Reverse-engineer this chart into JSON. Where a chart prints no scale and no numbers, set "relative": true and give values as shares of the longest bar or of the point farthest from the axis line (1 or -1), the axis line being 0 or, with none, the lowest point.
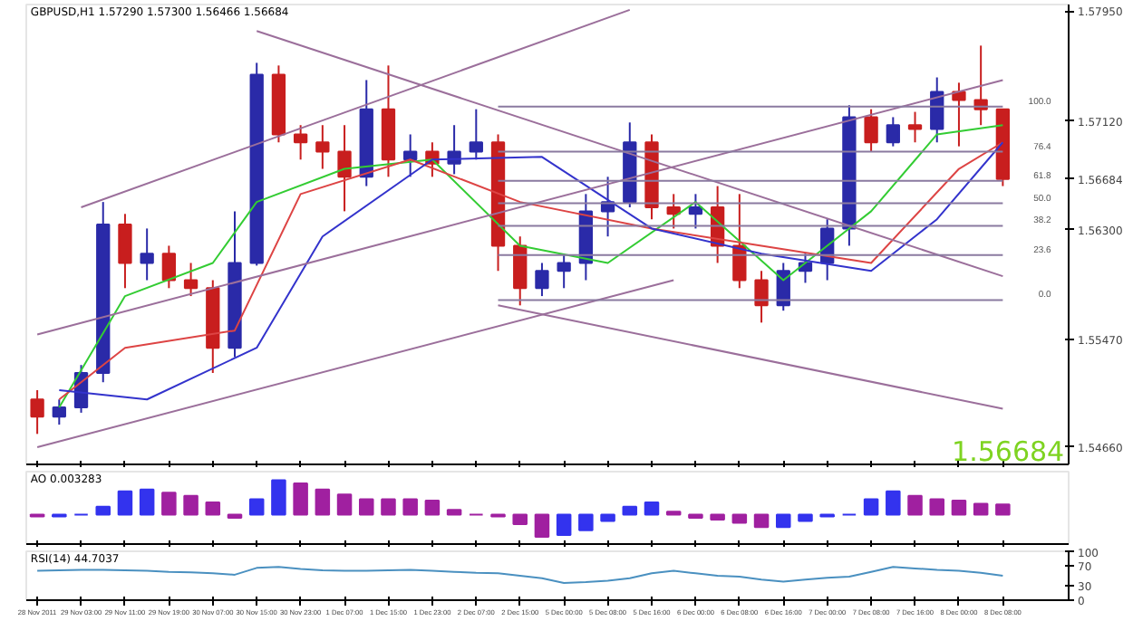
{
  "chart_data": [
    {
      "type": "candlestick",
      "title": "GBPUSD,H1 1.57290 1.57300 1.56466 1.56684",
      "categories": [
        "28 Nov 2011",
        null,
        "29 Nov 03:00",
        null,
        "29 Nov 11:00",
        null,
        "29 Nov 19:00",
        null,
        "30 Nov 07:00",
        null,
        "30 Nov 15:00",
        null,
        "30 Nov 23:00",
        null,
        "1 Dec 07:00",
        null,
        "1 Dec 15:00",
        null,
        "1 Dec 23:00",
        null,
        "2 Dec 07:00",
        null,
        "2 Dec 15:00",
        null,
        "5 Dec 00:00",
        null,
        "5 Dec 08:00",
        null,
        "5 Dec 16:00",
        null,
        "6 Dec 00:00",
        null,
        "6 Dec 08:00",
        null,
        "6 Dec 16:00",
        null,
        "7 Dec 00:00",
        null,
        "7 Dec 08:00",
        null,
        "7 Dec 16:00",
        null,
        "8 Dec 00:00",
        null,
        "8 Dec 08:00"
      ],
      "ohlc": [
        [
          1.5502,
          1.5509,
          1.5476,
          1.5489
        ],
        [
          1.5489,
          1.5502,
          1.5483,
          1.5496
        ],
        [
          1.5496,
          1.5528,
          1.5492,
          1.5522
        ],
        [
          1.5522,
          1.5651,
          1.5515,
          1.5634
        ],
        [
          1.5634,
          1.5642,
          1.5586,
          1.5605
        ],
        [
          1.5605,
          1.5631,
          1.5592,
          1.5612
        ],
        [
          1.5612,
          1.5618,
          1.5586,
          1.5592
        ],
        [
          1.5592,
          1.5605,
          1.558,
          1.5586
        ],
        [
          1.5586,
          1.5592,
          1.5522,
          1.5541
        ],
        [
          1.5541,
          1.5644,
          1.5534,
          1.5605
        ],
        [
          1.5605,
          1.5756,
          1.5603,
          1.5747
        ],
        [
          1.5747,
          1.5754,
          1.5696,
          1.5702
        ],
        [
          1.5702,
          1.5709,
          1.5683,
          1.5696
        ],
        [
          1.5696,
          1.5709,
          1.5676,
          1.5689
        ],
        [
          1.5689,
          1.5709,
          1.5644,
          1.567
        ],
        [
          1.567,
          1.5743,
          1.5663,
          1.5721
        ],
        [
          1.5721,
          1.5754,
          1.567,
          1.5683
        ],
        [
          1.5683,
          1.5702,
          1.567,
          1.5689
        ],
        [
          1.5689,
          1.5696,
          1.567,
          1.568
        ],
        [
          1.568,
          1.5709,
          1.5672,
          1.5689
        ],
        [
          1.5689,
          1.5721,
          1.5683,
          1.5696
        ],
        [
          1.5696,
          1.5702,
          1.5599,
          1.5618
        ],
        [
          1.5618,
          1.5625,
          1.5573,
          1.5586
        ],
        [
          1.5586,
          1.5605,
          1.558,
          1.5599
        ],
        [
          1.5599,
          1.5612,
          1.5586,
          1.5605
        ],
        [
          1.5605,
          1.5657,
          1.5592,
          1.5644
        ],
        [
          1.5644,
          1.567,
          1.5625,
          1.5651
        ],
        [
          1.5651,
          1.5711,
          1.5647,
          1.5696
        ],
        [
          1.5696,
          1.5702,
          1.5638,
          1.5647
        ],
        [
          1.5647,
          1.5657,
          1.5631,
          1.5642
        ],
        [
          1.5642,
          1.5657,
          1.5631,
          1.5647
        ],
        [
          1.5647,
          1.5663,
          1.5605,
          1.5618
        ],
        [
          1.5618,
          1.5657,
          1.5586,
          1.5592
        ],
        [
          1.5592,
          1.5599,
          1.556,
          1.5573
        ],
        [
          1.5573,
          1.5605,
          1.5569,
          1.5599
        ],
        [
          1.5599,
          1.5612,
          1.559,
          1.5605
        ],
        [
          1.5605,
          1.5638,
          1.5592,
          1.5631
        ],
        [
          1.5631,
          1.5724,
          1.5618,
          1.5715
        ],
        [
          1.5715,
          1.5721,
          1.5689,
          1.5696
        ],
        [
          1.5696,
          1.5715,
          1.5693,
          1.5709
        ],
        [
          1.5709,
          1.5719,
          1.5696,
          1.5706
        ],
        [
          1.5706,
          1.5745,
          1.5696,
          1.5734
        ],
        [
          1.5734,
          1.5741,
          1.5693,
          1.5728
        ],
        [
          1.5728,
          1.5769,
          1.5709,
          1.5721
        ],
        [
          1.5721,
          1.5721,
          1.5663,
          1.56684
        ]
      ],
      "series": [
        {
          "type": "line",
          "color": "#33cc33",
          "values": [
            null,
            1.5496,
            null,
            null,
            1.558,
            null,
            null,
            null,
            1.5605,
            null,
            1.5651,
            null,
            null,
            null,
            1.5676,
            null,
            null,
            null,
            1.5683,
            null,
            null,
            null,
            1.5618,
            null,
            null,
            null,
            1.5605,
            null,
            null,
            null,
            1.5651,
            null,
            null,
            null,
            1.5592,
            null,
            null,
            null,
            1.5644,
            null,
            null,
            1.5702,
            null,
            null,
            1.5709
          ]
        },
        {
          "type": "line",
          "color": "#dd4444",
          "values": [
            null,
            1.5502,
            null,
            null,
            1.5541,
            null,
            null,
            null,
            null,
            1.5554,
            null,
            null,
            1.5657,
            null,
            null,
            null,
            null,
            1.5683,
            null,
            null,
            null,
            null,
            1.5651,
            null,
            null,
            null,
            null,
            null,
            1.5631,
            null,
            null,
            null,
            null,
            1.5618,
            null,
            null,
            null,
            null,
            1.5605,
            null,
            null,
            null,
            1.5676,
            null,
            1.5696
          ]
        },
        {
          "type": "line",
          "color": "#3333cc",
          "values": [
            null,
            1.5509,
            null,
            null,
            null,
            1.5502,
            null,
            null,
            null,
            null,
            1.5541,
            null,
            null,
            1.5625,
            null,
            null,
            null,
            null,
            1.5683,
            null,
            null,
            null,
            null,
            1.5685,
            null,
            null,
            null,
            null,
            1.5631,
            null,
            null,
            null,
            null,
            1.5612,
            null,
            null,
            null,
            null,
            1.5599,
            null,
            null,
            1.5638,
            null,
            null,
            1.5696
          ]
        },
        {
          "type": "line",
          "color": "#9b6f9b",
          "values": [
            null,
            null,
            1.5647,
            null,
            null,
            null,
            null,
            null,
            null,
            null,
            null,
            null,
            null,
            null,
            null,
            null,
            null,
            null,
            null,
            null,
            null,
            null,
            null,
            null,
            null,
            null,
            null,
            1.5796,
            null,
            null,
            null,
            null,
            null,
            null,
            null,
            null,
            null,
            null,
            null,
            null,
            null,
            null,
            null,
            null,
            null
          ]
        },
        {
          "type": "line",
          "color": "#9b6f9b",
          "values": [
            1.5551,
            null,
            null,
            null,
            null,
            null,
            null,
            null,
            null,
            null,
            null,
            null,
            null,
            null,
            null,
            null,
            null,
            null,
            null,
            null,
            null,
            null,
            null,
            null,
            null,
            null,
            null,
            null,
            null,
            null,
            null,
            null,
            null,
            null,
            null,
            null,
            null,
            null,
            null,
            null,
            null,
            null,
            null,
            null,
            1.5743
          ]
        },
        {
          "type": "line",
          "color": "#9b6f9b",
          "values": [
            1.5466,
            null,
            null,
            null,
            null,
            null,
            null,
            null,
            null,
            null,
            null,
            null,
            null,
            null,
            null,
            null,
            null,
            null,
            null,
            null,
            null,
            null,
            null,
            null,
            null,
            null,
            null,
            null,
            null,
            1.5592,
            null,
            null,
            null,
            null,
            null,
            null,
            null,
            null,
            null,
            null,
            null,
            null,
            null,
            null,
            null
          ]
        },
        {
          "type": "line",
          "color": "#9b6f9b",
          "values": [
            null,
            null,
            null,
            null,
            null,
            null,
            null,
            null,
            null,
            null,
            1.578,
            null,
            null,
            null,
            null,
            null,
            null,
            null,
            null,
            null,
            null,
            null,
            null,
            null,
            null,
            null,
            null,
            null,
            null,
            null,
            null,
            null,
            null,
            null,
            null,
            null,
            null,
            null,
            null,
            null,
            null,
            null,
            null,
            null,
            1.5595
          ]
        },
        {
          "type": "line",
          "color": "#9b6f9b",
          "values": [
            null,
            null,
            null,
            null,
            null,
            null,
            null,
            null,
            null,
            null,
            null,
            null,
            null,
            null,
            null,
            null,
            null,
            null,
            null,
            null,
            null,
            1.5573,
            null,
            null,
            null,
            null,
            null,
            null,
            null,
            null,
            null,
            null,
            null,
            null,
            null,
            null,
            null,
            null,
            null,
            null,
            null,
            null,
            null,
            null,
            1.5495
          ]
        },
        {
          "type": "line",
          "name": "100.0",
          "color": "#8a7aa0",
          "values": [
            null,
            null,
            null,
            null,
            null,
            null,
            null,
            null,
            null,
            null,
            null,
            null,
            null,
            null,
            null,
            null,
            null,
            null,
            null,
            null,
            null,
            1.5723,
            null,
            null,
            null,
            null,
            null,
            null,
            null,
            null,
            null,
            null,
            null,
            null,
            null,
            null,
            null,
            null,
            null,
            null,
            null,
            null,
            null,
            null,
            1.5723
          ]
        },
        {
          "type": "line",
          "name": "76.4",
          "color": "#8a7aa0",
          "values": [
            null,
            null,
            null,
            null,
            null,
            null,
            null,
            null,
            null,
            null,
            null,
            null,
            null,
            null,
            null,
            null,
            null,
            null,
            null,
            null,
            null,
            1.5689,
            null,
            null,
            null,
            null,
            null,
            null,
            null,
            null,
            null,
            null,
            null,
            null,
            null,
            null,
            null,
            null,
            null,
            null,
            null,
            null,
            null,
            null,
            1.5689
          ]
        },
        {
          "type": "line",
          "name": "61.8",
          "color": "#8a7aa0",
          "values": [
            null,
            null,
            null,
            null,
            null,
            null,
            null,
            null,
            null,
            null,
            null,
            null,
            null,
            null,
            null,
            null,
            null,
            null,
            null,
            null,
            null,
            1.5667,
            null,
            null,
            null,
            null,
            null,
            null,
            null,
            null,
            null,
            null,
            null,
            null,
            null,
            null,
            null,
            null,
            null,
            null,
            null,
            null,
            null,
            null,
            1.5667
          ]
        },
        {
          "type": "line",
          "name": "50.0",
          "color": "#8a7aa0",
          "values": [
            null,
            null,
            null,
            null,
            null,
            null,
            null,
            null,
            null,
            null,
            null,
            null,
            null,
            null,
            null,
            null,
            null,
            null,
            null,
            null,
            null,
            1.565,
            null,
            null,
            null,
            null,
            null,
            null,
            null,
            null,
            null,
            null,
            null,
            null,
            null,
            null,
            null,
            null,
            null,
            null,
            null,
            null,
            null,
            null,
            1.565
          ]
        },
        {
          "type": "line",
          "name": "38.2",
          "color": "#8a7aa0",
          "values": [
            null,
            null,
            null,
            null,
            null,
            null,
            null,
            null,
            null,
            null,
            null,
            null,
            null,
            null,
            null,
            null,
            null,
            null,
            null,
            null,
            null,
            1.5633,
            null,
            null,
            null,
            null,
            null,
            null,
            null,
            null,
            null,
            null,
            null,
            null,
            null,
            null,
            null,
            null,
            null,
            null,
            null,
            null,
            null,
            null,
            1.5633
          ]
        },
        {
          "type": "line",
          "name": "23.6",
          "color": "#8a7aa0",
          "values": [
            null,
            null,
            null,
            null,
            null,
            null,
            null,
            null,
            null,
            null,
            null,
            null,
            null,
            null,
            null,
            null,
            null,
            null,
            null,
            null,
            null,
            1.5611,
            null,
            null,
            null,
            null,
            null,
            null,
            null,
            null,
            null,
            null,
            null,
            null,
            null,
            null,
            null,
            null,
            null,
            null,
            null,
            null,
            null,
            null,
            1.5611
          ]
        },
        {
          "type": "line",
          "name": "0.0",
          "color": "#8a7aa0",
          "values": [
            null,
            null,
            null,
            null,
            null,
            null,
            null,
            null,
            null,
            null,
            null,
            null,
            null,
            null,
            null,
            null,
            null,
            null,
            null,
            null,
            null,
            1.5577,
            null,
            null,
            null,
            null,
            null,
            null,
            null,
            null,
            null,
            null,
            null,
            null,
            null,
            null,
            null,
            null,
            null,
            null,
            null,
            null,
            null,
            null,
            1.5577
          ]
        }
      ],
      "annotations": [
        "1.56684"
      ],
      "ylim": [
        1.5453,
        1.58
      ],
      "yticks": [
        {
          "value": 1.5795,
          "label": "1.57950"
        },
        {
          "value": 1.5712,
          "label": "1.57120"
        },
        {
          "value": 1.56684,
          "label": "1.56684"
        },
        {
          "value": 1.563,
          "label": "1.56300"
        },
        {
          "value": 1.5547,
          "label": "1.55470"
        },
        {
          "value": 1.5466,
          "label": "1.54660"
        }
      ],
      "tick_labels": "y",
      "grid": false
    },
    {
      "type": "bar",
      "title": "AO 0.003283",
      "relative": true,
      "categories": [
        "28 Nov 2011",
        null,
        "29 Nov 03:00",
        null,
        "29 Nov 11:00",
        null,
        "29 Nov 19:00",
        null,
        "30 Nov 07:00",
        null,
        "30 Nov 15:00",
        null,
        "30 Nov 23:00",
        null,
        "1 Dec 07:00",
        null,
        "1 Dec 15:00",
        null,
        "1 Dec 23:00",
        null,
        "2 Dec 07:00",
        null,
        "2 Dec 15:00",
        null,
        "5 Dec 00:00",
        null,
        "5 Dec 08:00",
        null,
        "5 Dec 16:00",
        null,
        "6 Dec 00:00",
        null,
        "6 Dec 08:00",
        null,
        "6 Dec 16:00",
        null,
        "7 Dec 00:00",
        null,
        "7 Dec 08:00",
        null,
        "7 Dec 16:00",
        null,
        "8 Dec 00:00",
        null,
        "8 Dec 08:00"
      ],
      "values": [
        -0.05,
        -0.05,
        0,
        0.23,
        0.68,
        0.73,
        0.64,
        0.55,
        0.36,
        -0.09,
        0.45,
        1,
        0.91,
        0.73,
        0.59,
        0.45,
        0.45,
        0.45,
        0.41,
        0.14,
        0,
        -0.05,
        -0.27,
        -0.64,
        -0.59,
        -0.45,
        -0.18,
        0.23,
        0.36,
        0.09,
        -0.09,
        -0.14,
        -0.23,
        -0.36,
        -0.36,
        -0.18,
        -0.05,
        0,
        0.45,
        0.68,
        0.55,
        0.45,
        0.41,
        0.32,
        0.3
      ],
      "colors": [
        "#a020a0",
        "#3333ee",
        "#3333ee",
        "#3333ee",
        "#3333ee",
        "#3333ee",
        "#a020a0",
        "#a020a0",
        "#a020a0",
        "#a020a0",
        "#3333ee",
        "#3333ee",
        "#a020a0",
        "#a020a0",
        "#a020a0",
        "#a020a0",
        "#a020a0",
        "#a020a0",
        "#a020a0",
        "#a020a0",
        "#a020a0",
        "#a020a0",
        "#a020a0",
        "#a020a0",
        "#3333ee",
        "#3333ee",
        "#3333ee",
        "#3333ee",
        "#3333ee",
        "#a020a0",
        "#a020a0",
        "#a020a0",
        "#a020a0",
        "#a020a0",
        "#3333ee",
        "#3333ee",
        "#3333ee",
        "#3333ee",
        "#3333ee",
        "#3333ee",
        "#a020a0",
        "#a020a0",
        "#a020a0",
        "#a020a0",
        "#a020a0"
      ],
      "tick_labels": false,
      "grid": false
    },
    {
      "type": "line",
      "title": "RSI(14) 44.7037",
      "categories": [
        "28 Nov 2011",
        null,
        "29 Nov 03:00",
        null,
        "29 Nov 11:00",
        null,
        "29 Nov 19:00",
        null,
        "30 Nov 07:00",
        null,
        "30 Nov 15:00",
        null,
        "30 Nov 23:00",
        null,
        "1 Dec 07:00",
        null,
        "1 Dec 15:00",
        null,
        "1 Dec 23:00",
        null,
        "2 Dec 07:00",
        null,
        "2 Dec 15:00",
        null,
        "5 Dec 00:00",
        null,
        "5 Dec 08:00",
        null,
        "5 Dec 16:00",
        null,
        "6 Dec 00:00",
        null,
        "6 Dec 08:00",
        null,
        "6 Dec 16:00",
        null,
        "7 Dec 00:00",
        null,
        "7 Dec 08:00",
        null,
        "7 Dec 16:00",
        null,
        "8 Dec 00:00",
        null,
        "8 Dec 08:00"
      ],
      "series": [
        {
          "color": "#4a90c0",
          "values": [
            60,
            61,
            62,
            62,
            61,
            60,
            58,
            57,
            55,
            52,
            66,
            68,
            64,
            61,
            60,
            60,
            61,
            62,
            60,
            58,
            56,
            55,
            50,
            45,
            35,
            37,
            40,
            45,
            55,
            60,
            55,
            50,
            48,
            42,
            38,
            42,
            46,
            48,
            58,
            68,
            65,
            62,
            60,
            56,
            50
          ]
        }
      ],
      "ylim": [
        0,
        100
      ],
      "yticks": [
        0,
        30,
        70,
        100
      ],
      "grid": false
    }
  ]
}
